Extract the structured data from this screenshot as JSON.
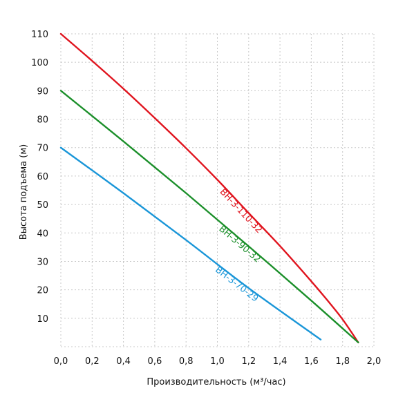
{
  "chart_data": {
    "type": "line",
    "title": "",
    "xlabel": "Производительность (м³/час)",
    "ylabel": "Высота подъема (м)",
    "xlim": [
      0,
      2.0
    ],
    "ylim": [
      0,
      110
    ],
    "x_ticks": [
      0.0,
      0.2,
      0.4,
      0.6,
      0.8,
      1.0,
      1.2,
      1.4,
      1.6,
      1.8,
      2.0
    ],
    "x_tick_labels": [
      "0,0",
      "0,2",
      "0,4",
      "0,6",
      "0,8",
      "1,0",
      "1,2",
      "1,4",
      "1,6",
      "1,8",
      "2,0"
    ],
    "y_ticks": [
      10,
      20,
      30,
      40,
      50,
      60,
      70,
      80,
      90,
      100,
      110
    ],
    "y_tick_labels": [
      "10",
      "20",
      "30",
      "40",
      "50",
      "60",
      "70",
      "80",
      "90",
      "100",
      "110"
    ],
    "grid": true,
    "legend": "none",
    "series": [
      {
        "name": "ВН-3-110-32",
        "color": "#e0141e",
        "x": [
          0.0,
          0.2,
          0.4,
          0.6,
          0.8,
          1.0,
          1.2,
          1.4,
          1.6,
          1.7,
          1.8,
          1.9
        ],
        "y": [
          110,
          100.5,
          90.7,
          80.4,
          69.8,
          58.7,
          47.0,
          35.4,
          23.0,
          16.5,
          9.6,
          1.5
        ]
      },
      {
        "name": "ВН-3-90-32",
        "color": "#1b8f2a",
        "x": [
          0.0,
          0.4,
          0.8,
          1.2,
          1.6,
          1.9
        ],
        "y": [
          90,
          72.2,
          54.0,
          35.3,
          16.2,
          1.5
        ]
      },
      {
        "name": "ВН-3-70-29",
        "color": "#1a96d8",
        "x": [
          0.0,
          0.4,
          0.8,
          1.2,
          1.66
        ],
        "y": [
          70,
          54.0,
          37.5,
          20.6,
          2.5
        ]
      }
    ]
  }
}
